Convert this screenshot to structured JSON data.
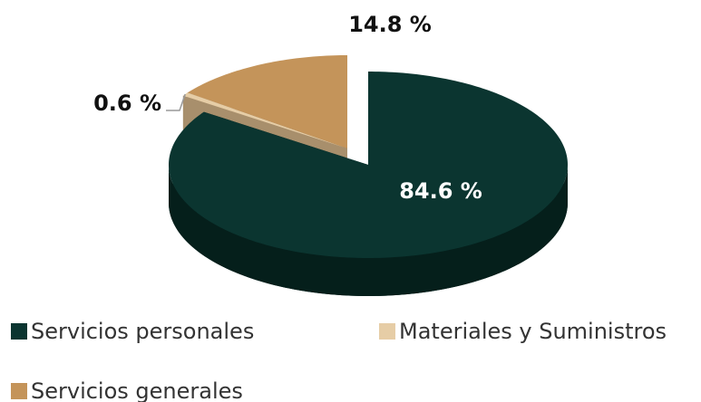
{
  "chart_data": {
    "type": "pie",
    "categories": [
      "Servicios personales",
      "Materiales y Suministros",
      "Servicios generales"
    ],
    "values": [
      84.6,
      0.6,
      14.8
    ],
    "value_labels": [
      "84.6 %",
      "0.6 %",
      "14.8 %"
    ],
    "colors": [
      "#0b3530",
      "#e6cda6",
      "#c4945a"
    ]
  }
}
